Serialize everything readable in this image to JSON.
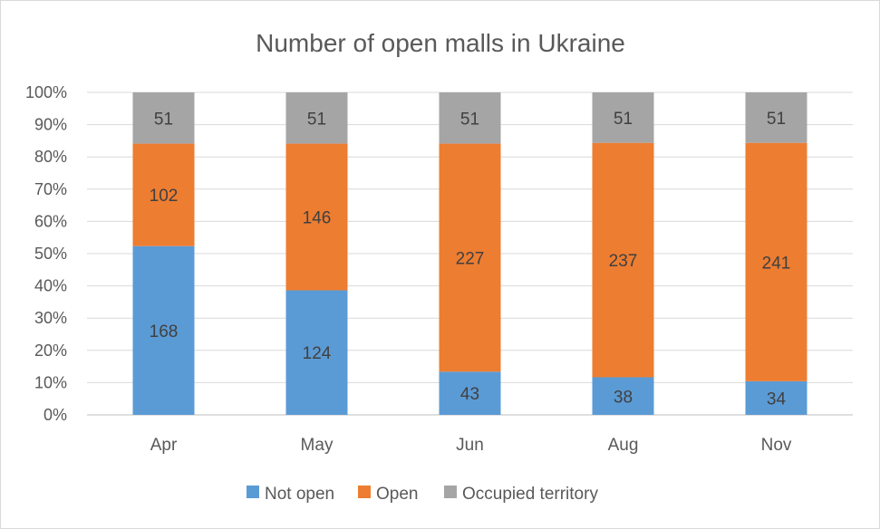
{
  "chart_data": {
    "type": "bar",
    "stacked": "percent",
    "title": "Number of open malls in Ukraine",
    "categories": [
      "Apr",
      "May",
      "Jun",
      "Aug",
      "Nov"
    ],
    "series": [
      {
        "name": "Not open",
        "values": [
          168,
          124,
          43,
          38,
          34
        ],
        "color": "#5b9bd5"
      },
      {
        "name": "Open",
        "values": [
          102,
          146,
          227,
          237,
          241
        ],
        "color": "#ed7d31"
      },
      {
        "name": "Occupied territory",
        "values": [
          51,
          51,
          51,
          51,
          51
        ],
        "color": "#a5a5a5"
      }
    ],
    "yticks": [
      "0%",
      "10%",
      "20%",
      "30%",
      "40%",
      "50%",
      "60%",
      "70%",
      "80%",
      "90%",
      "100%"
    ],
    "ylim": [
      0,
      100
    ],
    "grid": true,
    "legend_position": "bottom"
  }
}
